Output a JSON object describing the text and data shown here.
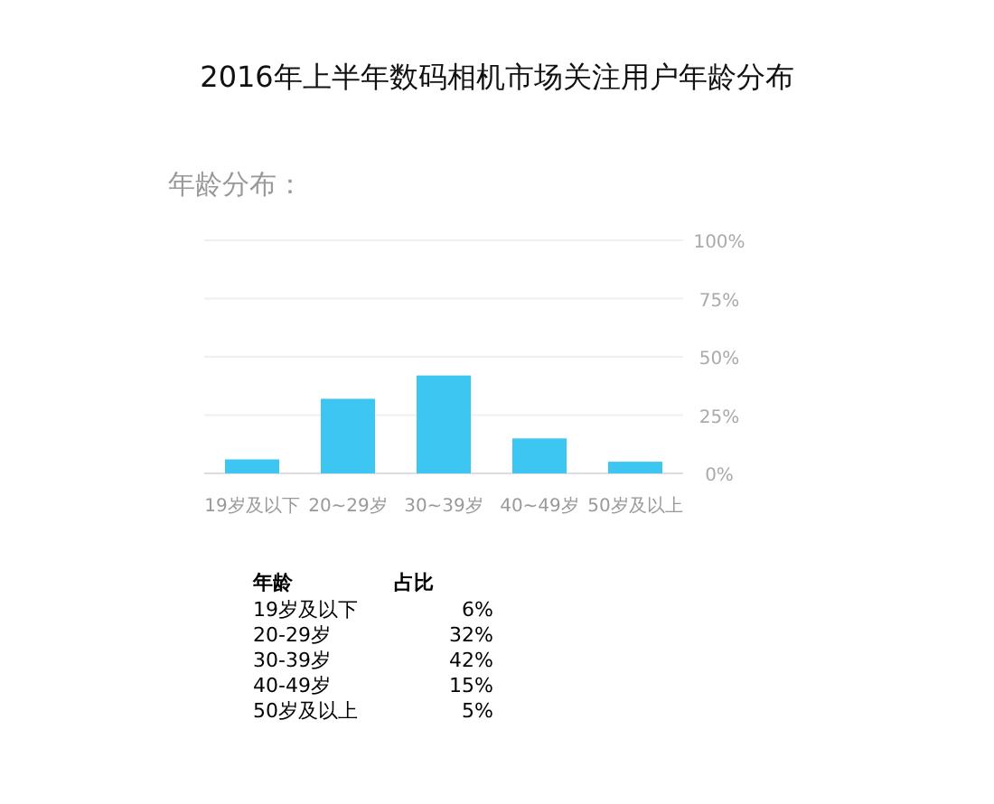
{
  "chart_data": {
    "type": "bar",
    "title": "2016年上半年数码相机市场关注用户年龄分布",
    "subtitle": "年龄分布：",
    "categories": [
      "19岁及以下",
      "20~29岁",
      "30~39岁",
      "40~49岁",
      "50岁及以上"
    ],
    "values": [
      6,
      32,
      42,
      15,
      5
    ],
    "color": "#3ec6f2",
    "ylim": [
      0,
      100
    ],
    "yticks": [
      {
        "value": 0,
        "label": "0%"
      },
      {
        "value": 25,
        "label": "25%"
      },
      {
        "value": 50,
        "label": "50%"
      },
      {
        "value": 75,
        "label": "75%"
      },
      {
        "value": 100,
        "label": "100%"
      }
    ],
    "grid": "y",
    "annotations": [
      "年龄",
      "占比",
      "19岁及以下",
      "6%",
      "20-29岁",
      "32%",
      "30-39岁",
      "42%",
      "40-49岁",
      "15%",
      "50岁及以上",
      "5%"
    ]
  }
}
